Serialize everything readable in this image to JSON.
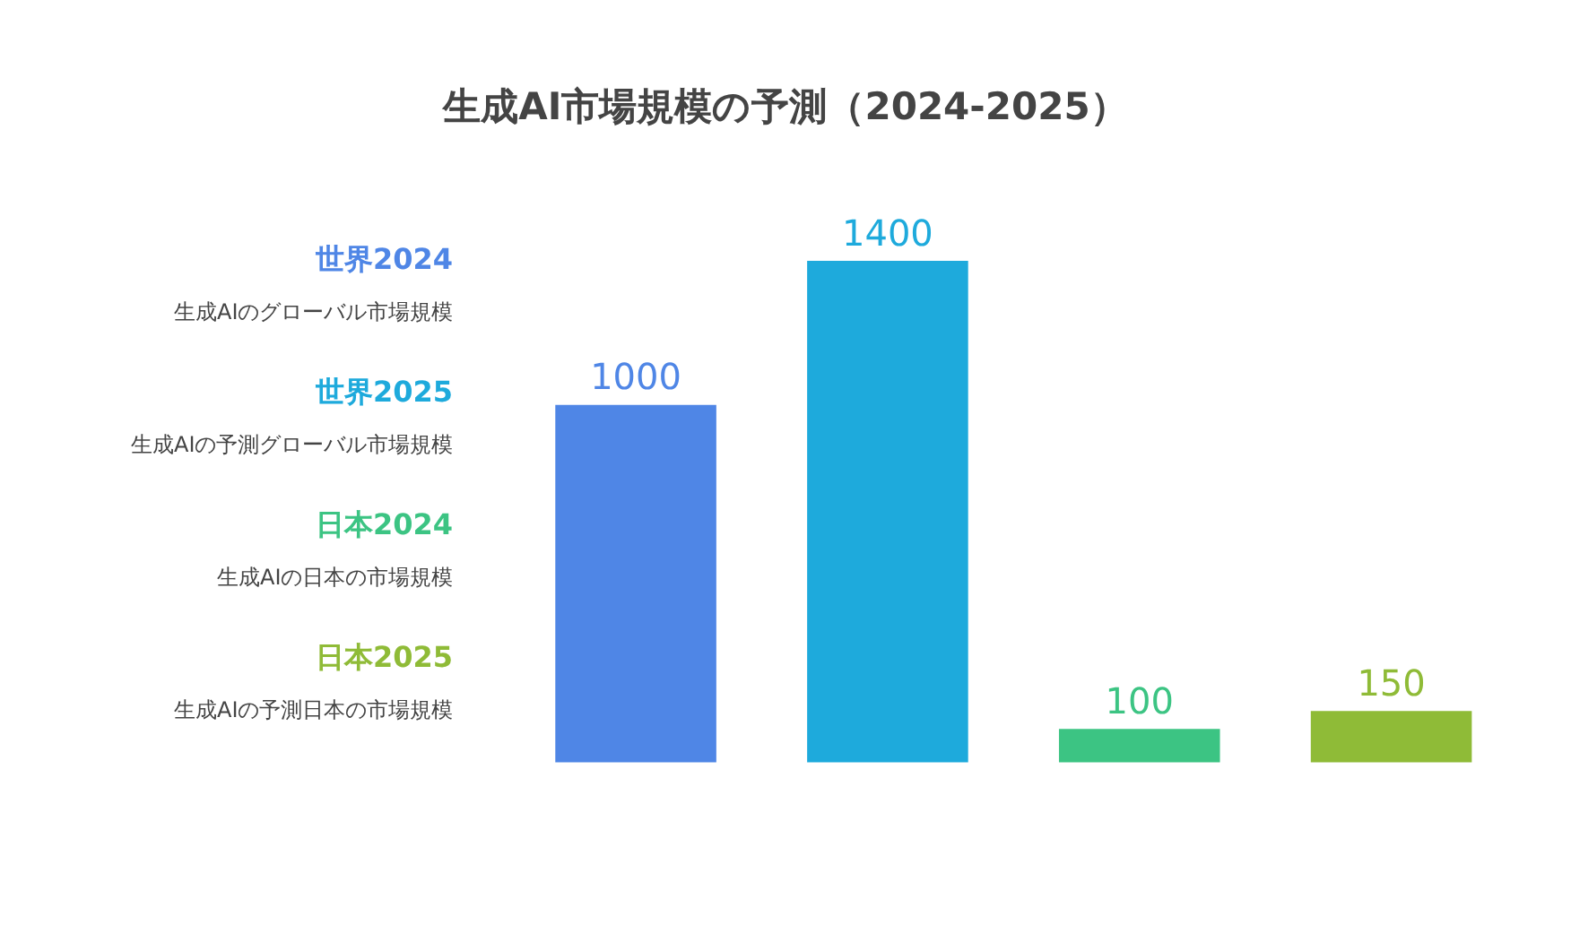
{
  "chart_data": {
    "type": "bar",
    "title": "生成AI市場規模の予測（2024-2025）",
    "categories": [
      null,
      null,
      null,
      null
    ],
    "values": [
      1000,
      1400,
      100,
      150
    ],
    "colors": [
      "#4f86e6",
      "#1eaadc",
      "#3cc483",
      "#8fbb37"
    ],
    "annotations": [
      "世界2024",
      "生成AIのグローバル市場規模",
      "世界2025",
      "生成AIの予測グローバル市場規模",
      "日本2024",
      "生成AIの日本の市場規模",
      "日本2025",
      "生成AIの予測日本の市場規模"
    ],
    "data_labels": true
  }
}
